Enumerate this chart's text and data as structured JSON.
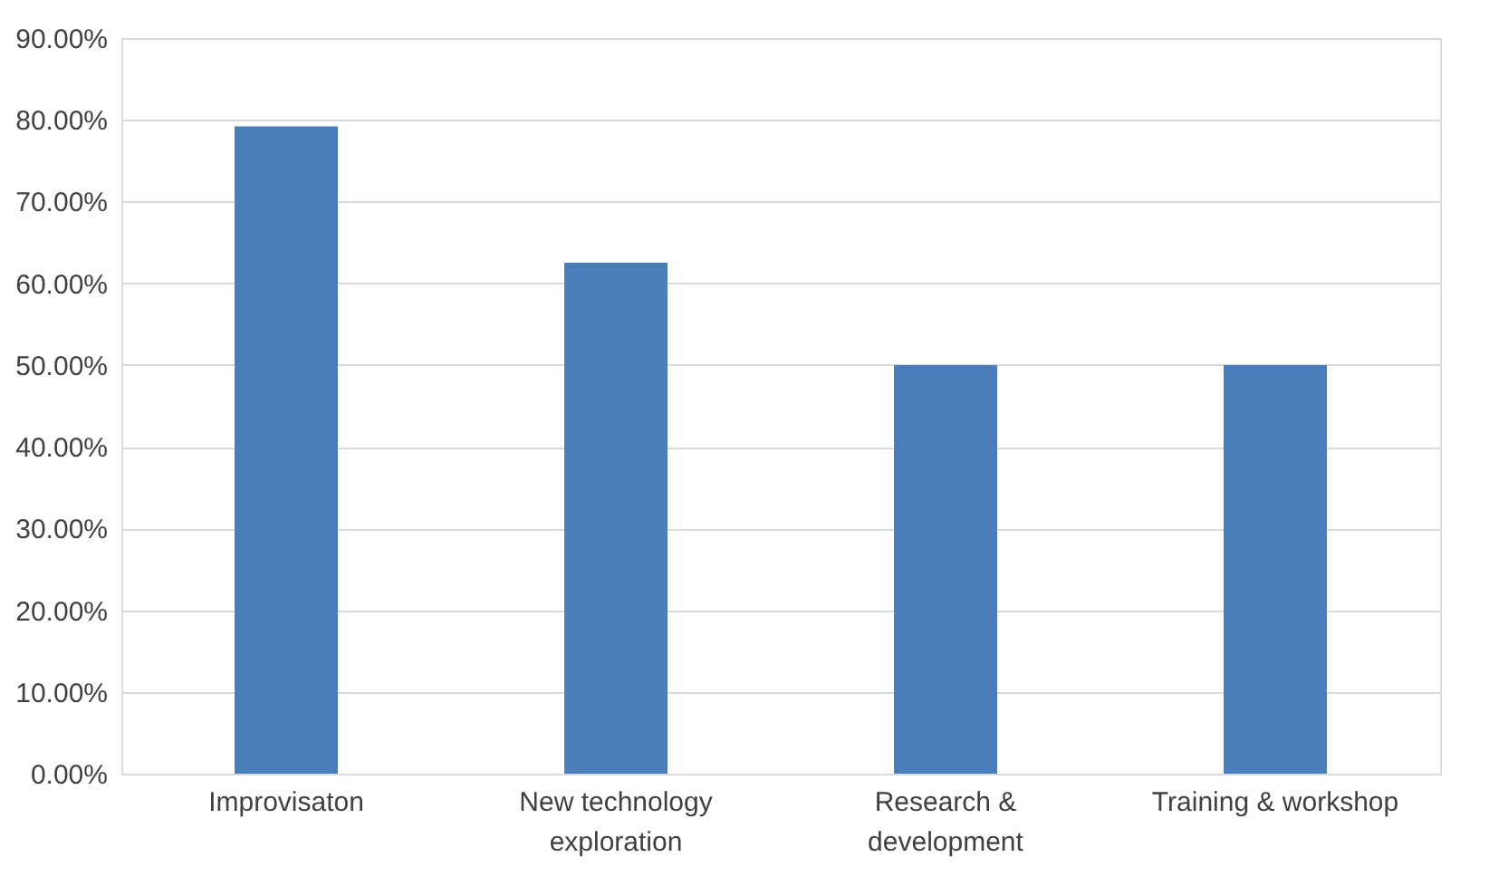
{
  "chart_data": {
    "type": "bar",
    "categories": [
      "Improvisaton",
      "New technology exploration",
      "Research & development",
      "Training & workshop"
    ],
    "values": [
      79.2,
      62.5,
      50.0,
      50.0
    ],
    "color": "#4a7ebb",
    "ylim": [
      0,
      90
    ],
    "yticks": [
      {
        "value": 0,
        "label": "0.00%"
      },
      {
        "value": 10,
        "label": "10.00%"
      },
      {
        "value": 20,
        "label": "20.00%"
      },
      {
        "value": 30,
        "label": "30.00%"
      },
      {
        "value": 40,
        "label": "40.00%"
      },
      {
        "value": 50,
        "label": "50.00%"
      },
      {
        "value": 60,
        "label": "60.00%"
      },
      {
        "value": 70,
        "label": "70.00%"
      },
      {
        "value": 80,
        "label": "80.00%"
      },
      {
        "value": 90,
        "label": "90.00%"
      }
    ],
    "grid": "y"
  }
}
